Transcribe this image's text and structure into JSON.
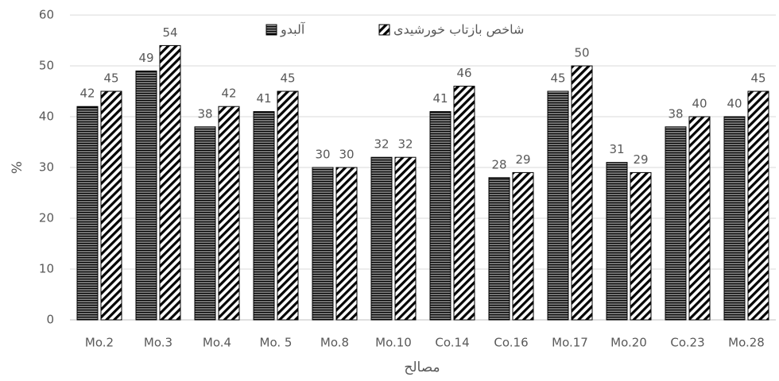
{
  "chart_data": {
    "type": "bar",
    "x_label": "مصالح",
    "y_label": "%",
    "categories": [
      "Mo.2",
      "Mo.3",
      "Mo.4",
      "Mo. 5",
      "Mo.8",
      "Mo.10",
      "Co.14",
      "Co.16",
      "Mo.17",
      "Mo.20",
      "Co.23",
      "Mo.28"
    ],
    "series": [
      {
        "name": "آلبدو",
        "color": "#000000",
        "pattern": "horizontal",
        "values": [
          42,
          49,
          38,
          41,
          30,
          32,
          41,
          28,
          45,
          31,
          38,
          40
        ]
      },
      {
        "name": "شاخص بازتاب خورشیدی",
        "color": "#000000",
        "pattern": "diagonal",
        "values": [
          45,
          54,
          42,
          45,
          30,
          32,
          46,
          29,
          50,
          29,
          40,
          45
        ]
      }
    ],
    "ylim": [
      0,
      60
    ],
    "yticks": [
      0,
      10,
      20,
      30,
      40,
      50,
      60
    ],
    "grid": true,
    "legend": "top"
  }
}
